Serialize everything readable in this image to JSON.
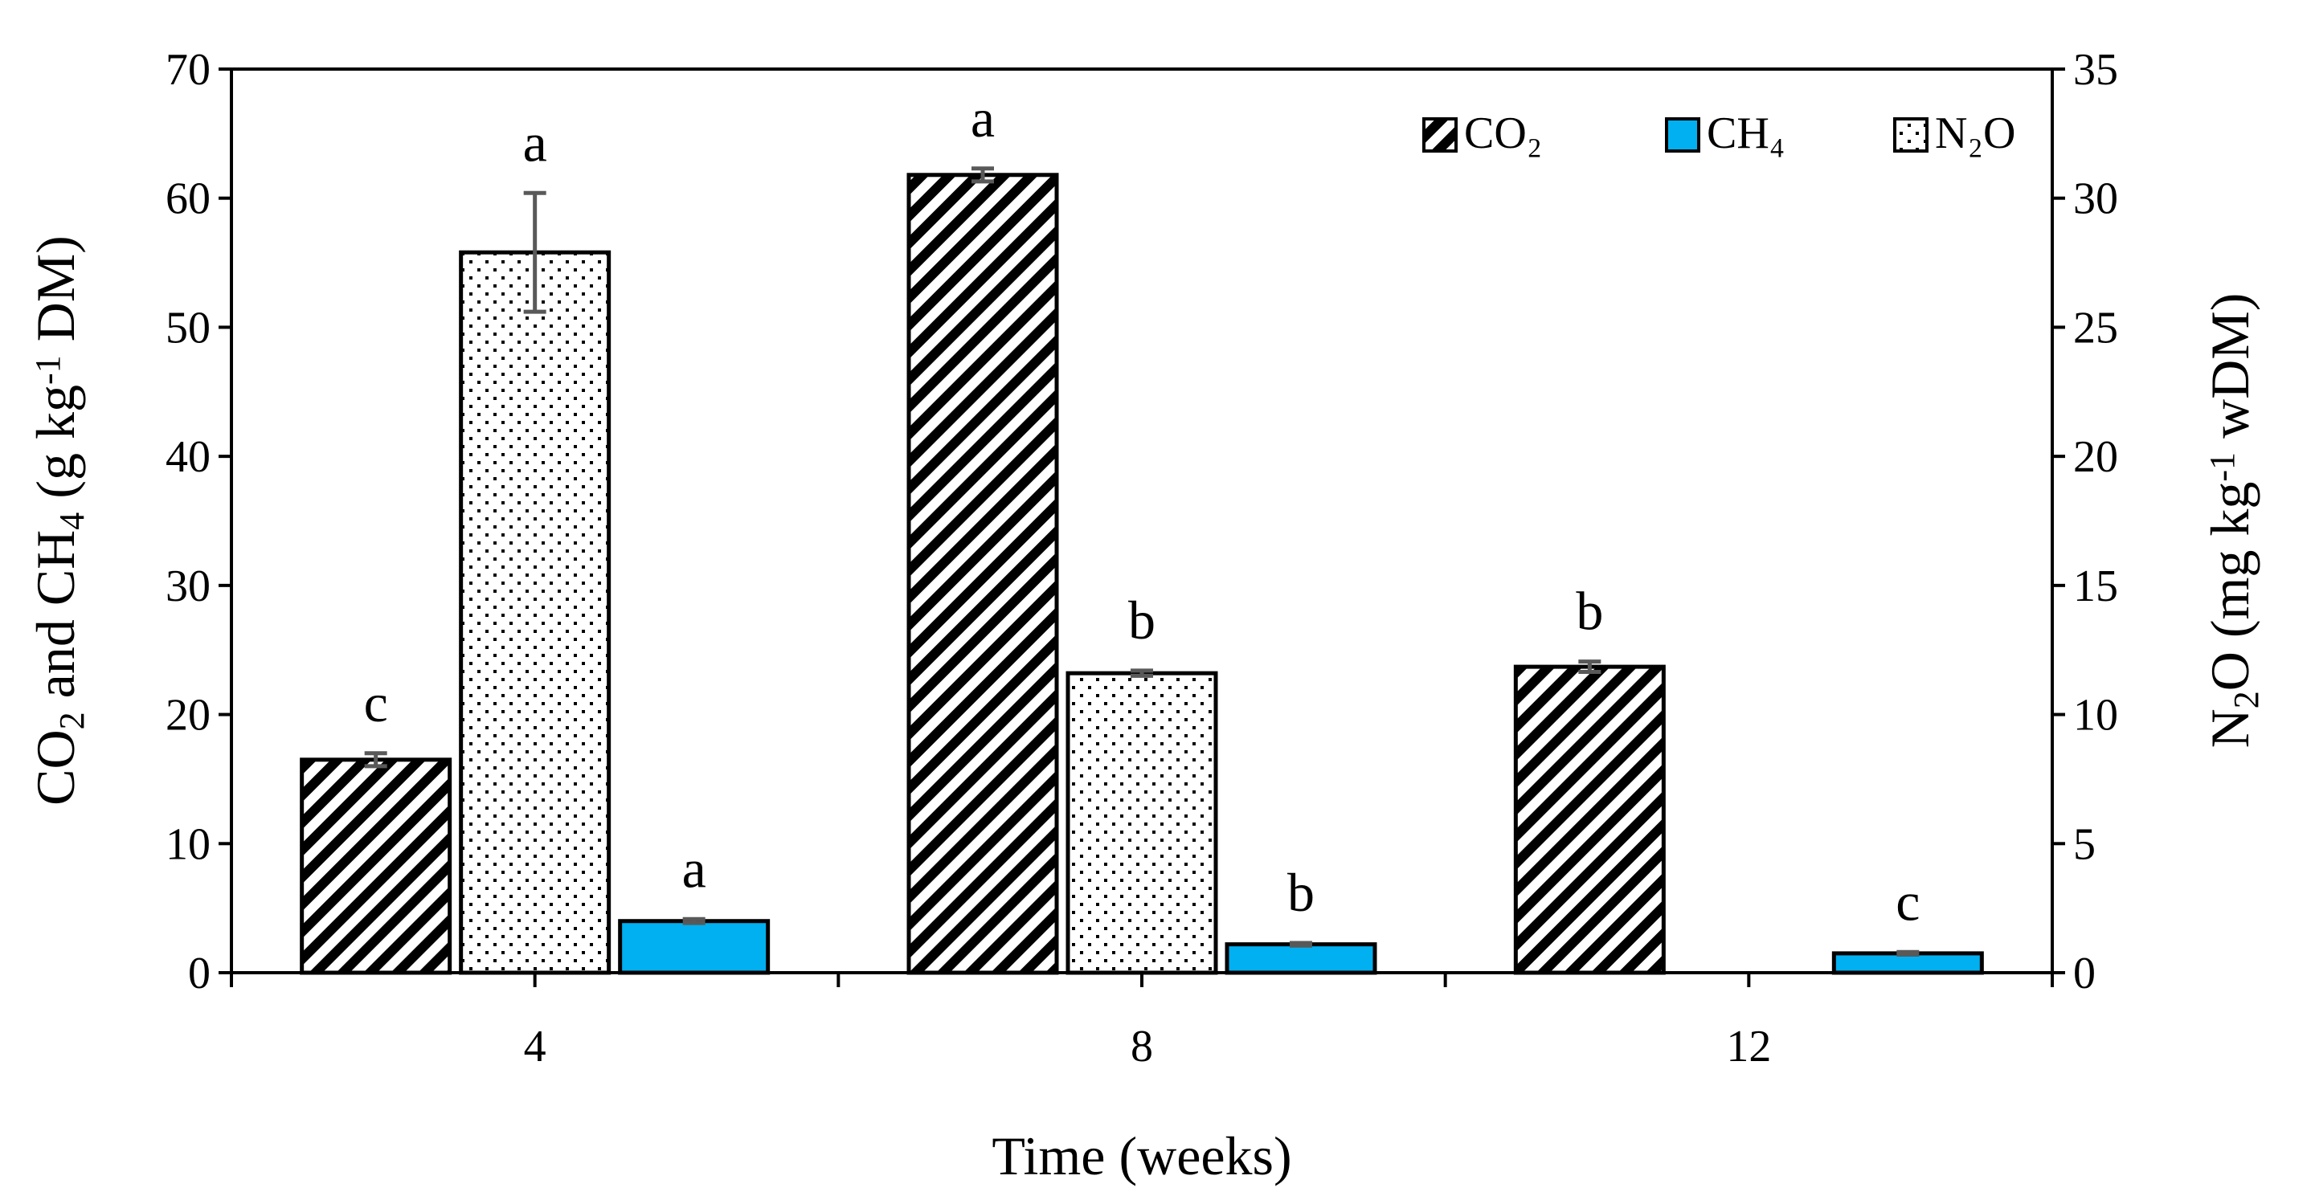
{
  "chart_data": {
    "type": "bar",
    "xlabel": "Time (weeks)",
    "categories": [
      "4",
      "8",
      "12"
    ],
    "left_axis": {
      "label_parts": [
        "CO",
        "2",
        " and CH",
        "4",
        " (g kg",
        "-1",
        " DM)"
      ],
      "range": [
        0,
        70
      ],
      "ticks": [
        "0",
        "10",
        "20",
        "30",
        "40",
        "50",
        "60",
        "70"
      ]
    },
    "right_axis": {
      "label_parts": [
        "N",
        "2",
        "O (mg kg",
        "-1",
        " wDM)"
      ],
      "range": [
        0,
        35
      ],
      "ticks": [
        "0",
        "5",
        "10",
        "15",
        "20",
        "25",
        "30",
        "35"
      ]
    },
    "series": [
      {
        "name": "CO₂",
        "axis": "left",
        "pattern": "diagonal-stripes",
        "color": "#ffffff",
        "values": [
          16.5,
          61.8,
          23.7
        ],
        "errors": [
          0.5,
          0.5,
          0.4
        ],
        "letters": [
          "c",
          "a",
          "b"
        ]
      },
      {
        "name": "N₂O",
        "axis": "right",
        "pattern": "dots",
        "color": "#ffffff",
        "values": [
          27.9,
          11.6,
          null
        ],
        "errors": [
          2.3,
          0.1,
          null
        ],
        "letters": [
          "a",
          "b",
          ""
        ]
      },
      {
        "name": "CH₄",
        "axis": "left",
        "pattern": "solid",
        "color": "#00b0f0",
        "values": [
          4.0,
          2.2,
          1.5
        ],
        "errors": [
          0.15,
          0.1,
          0.1
        ],
        "letters": [
          "a",
          "b",
          "c"
        ]
      }
    ],
    "legend": [
      {
        "label": "CO₂",
        "pattern": "diagonal-stripes"
      },
      {
        "label": "CH₄",
        "pattern": "solid"
      },
      {
        "label": "N₂O",
        "pattern": "dots"
      }
    ],
    "legend_position": "top-right",
    "grid": false
  }
}
